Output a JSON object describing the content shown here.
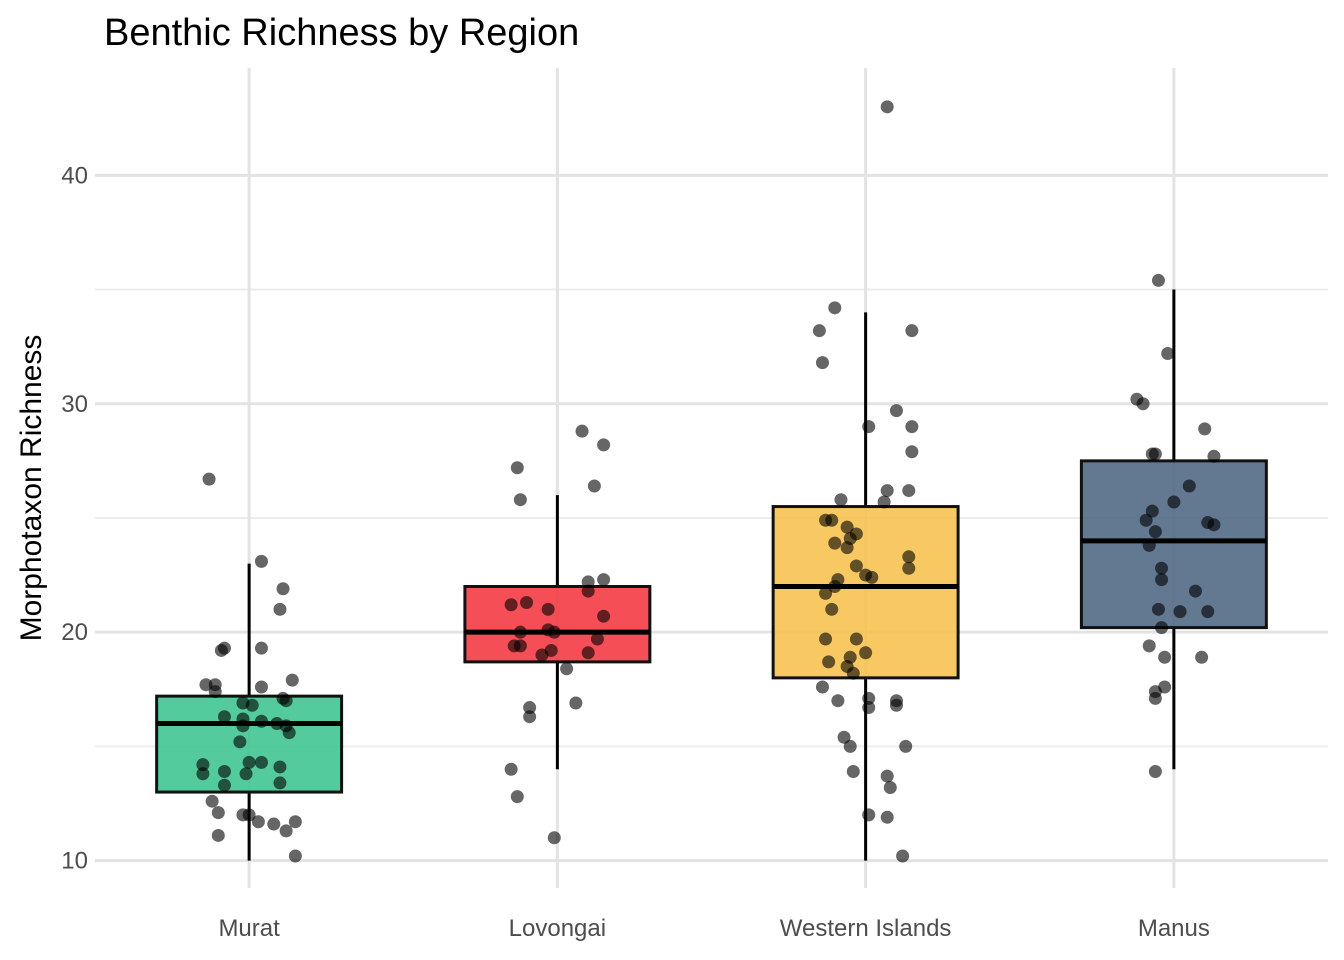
{
  "chart_data": {
    "type": "box",
    "title": "Benthic Richness by Region",
    "xlabel": "",
    "ylabel": "Morphotaxon Richness",
    "ylim": [
      8.8,
      44.7
    ],
    "yticks": [
      10,
      20,
      30,
      40
    ],
    "grid": true,
    "legend": "none",
    "categories": [
      "Murat",
      "Lovongai",
      "Western Islands",
      "Manus"
    ],
    "colors": [
      "#3CC48F",
      "#F5363F",
      "#F7C14C",
      "#4D6582"
    ],
    "boxes": [
      {
        "category": "Murat",
        "min": 10,
        "q1": 13.0,
        "median": 16.0,
        "q3": 17.2,
        "max": 23.0
      },
      {
        "category": "Lovongai",
        "min": 14,
        "q1": 18.7,
        "median": 20.0,
        "q3": 22.0,
        "max": 26.0
      },
      {
        "category": "Western Islands",
        "min": 10,
        "q1": 18.0,
        "median": 22.0,
        "q3": 25.5,
        "max": 34.0
      },
      {
        "category": "Manus",
        "min": 14,
        "q1": 20.2,
        "median": 24.0,
        "q3": 27.5,
        "max": 35.0
      }
    ],
    "points": [
      [
        [
          -0.13,
          26.7
        ],
        [
          -0.09,
          19.2
        ],
        [
          -0.08,
          19.3
        ],
        [
          0.04,
          19.3
        ],
        [
          0.04,
          17.6
        ],
        [
          -0.14,
          17.7
        ],
        [
          -0.11,
          17.7
        ],
        [
          -0.11,
          17.4
        ],
        [
          0.14,
          17.9
        ],
        [
          -0.02,
          16.9
        ],
        [
          0.01,
          16.8
        ],
        [
          0.11,
          17.1
        ],
        [
          0.12,
          17.0
        ],
        [
          -0.08,
          16.3
        ],
        [
          -0.02,
          16.2
        ],
        [
          -0.02,
          15.9
        ],
        [
          0.04,
          16.1
        ],
        [
          0.09,
          16.0
        ],
        [
          0.12,
          15.9
        ],
        [
          0.13,
          15.6
        ],
        [
          -0.03,
          15.2
        ],
        [
          0.0,
          14.3
        ],
        [
          0.04,
          14.3
        ],
        [
          0.1,
          14.1
        ],
        [
          -0.15,
          14.2
        ],
        [
          -0.15,
          13.8
        ],
        [
          -0.08,
          13.9
        ],
        [
          0.1,
          13.4
        ],
        [
          -0.08,
          13.3
        ],
        [
          -0.01,
          13.8
        ],
        [
          -0.12,
          12.6
        ],
        [
          -0.1,
          12.1
        ],
        [
          -0.02,
          12.0
        ],
        [
          0.0,
          12.0
        ],
        [
          0.03,
          11.7
        ],
        [
          0.08,
          11.6
        ],
        [
          0.12,
          11.3
        ],
        [
          0.15,
          11.7
        ],
        [
          -0.1,
          11.1
        ],
        [
          0.15,
          10.2
        ],
        [
          0.04,
          23.1
        ],
        [
          0.11,
          21.9
        ],
        [
          0.1,
          21.0
        ]
      ],
      [
        [
          -0.13,
          27.2
        ],
        [
          -0.12,
          25.8
        ],
        [
          0.08,
          28.8
        ],
        [
          0.15,
          28.2
        ],
        [
          0.12,
          26.4
        ],
        [
          0.1,
          22.2
        ],
        [
          0.15,
          22.3
        ],
        [
          0.1,
          21.8
        ],
        [
          -0.15,
          21.2
        ],
        [
          -0.1,
          21.3
        ],
        [
          -0.03,
          21.0
        ],
        [
          0.15,
          20.7
        ],
        [
          -0.12,
          20.0
        ],
        [
          -0.03,
          20.1
        ],
        [
          -0.01,
          20.0
        ],
        [
          -0.14,
          19.4
        ],
        [
          -0.12,
          19.4
        ],
        [
          -0.02,
          19.2
        ],
        [
          -0.05,
          19.0
        ],
        [
          0.13,
          19.7
        ],
        [
          0.1,
          19.1
        ],
        [
          0.03,
          18.4
        ],
        [
          -0.09,
          16.7
        ],
        [
          -0.09,
          16.3
        ],
        [
          0.06,
          16.9
        ],
        [
          -0.15,
          14.0
        ],
        [
          -0.13,
          12.8
        ],
        [
          -0.01,
          11.0
        ]
      ],
      [
        [
          0.07,
          43.0
        ],
        [
          -0.1,
          34.2
        ],
        [
          -0.15,
          33.2
        ],
        [
          -0.14,
          31.8
        ],
        [
          0.15,
          33.2
        ],
        [
          0.1,
          29.7
        ],
        [
          0.01,
          29.0
        ],
        [
          0.15,
          29.0
        ],
        [
          0.15,
          27.9
        ],
        [
          0.07,
          26.2
        ],
        [
          0.14,
          26.2
        ],
        [
          -0.08,
          25.8
        ],
        [
          0.06,
          25.7
        ],
        [
          -0.11,
          24.9
        ],
        [
          -0.13,
          24.9
        ],
        [
          -0.06,
          24.6
        ],
        [
          -0.03,
          24.3
        ],
        [
          -0.05,
          24.1
        ],
        [
          -0.1,
          23.9
        ],
        [
          -0.06,
          23.7
        ],
        [
          -0.03,
          22.9
        ],
        [
          0.0,
          22.5
        ],
        [
          0.02,
          22.4
        ],
        [
          -0.09,
          22.3
        ],
        [
          -0.1,
          22.0
        ],
        [
          -0.13,
          21.7
        ],
        [
          -0.11,
          21.0
        ],
        [
          -0.13,
          19.7
        ],
        [
          -0.03,
          19.7
        ],
        [
          0.0,
          19.1
        ],
        [
          -0.05,
          18.9
        ],
        [
          -0.12,
          18.7
        ],
        [
          -0.06,
          18.5
        ],
        [
          -0.04,
          18.2
        ],
        [
          0.14,
          23.3
        ],
        [
          0.14,
          22.8
        ],
        [
          0.1,
          17.0
        ],
        [
          -0.14,
          17.6
        ],
        [
          -0.09,
          17.0
        ],
        [
          0.01,
          17.1
        ],
        [
          0.01,
          16.7
        ],
        [
          0.1,
          16.8
        ],
        [
          -0.07,
          15.4
        ],
        [
          -0.05,
          15.0
        ],
        [
          0.13,
          15.0
        ],
        [
          -0.04,
          13.9
        ],
        [
          0.07,
          13.7
        ],
        [
          0.08,
          13.2
        ],
        [
          0.01,
          12.0
        ],
        [
          0.07,
          11.9
        ],
        [
          0.12,
          10.2
        ]
      ],
      [
        [
          -0.05,
          35.4
        ],
        [
          -0.02,
          32.2
        ],
        [
          -0.12,
          30.2
        ],
        [
          -0.1,
          30.0
        ],
        [
          0.1,
          28.9
        ],
        [
          -0.06,
          27.8
        ],
        [
          -0.07,
          27.8
        ],
        [
          0.13,
          27.7
        ],
        [
          0.05,
          26.4
        ],
        [
          0.0,
          25.7
        ],
        [
          -0.07,
          25.3
        ],
        [
          -0.09,
          24.9
        ],
        [
          -0.06,
          24.4
        ],
        [
          0.11,
          24.8
        ],
        [
          0.13,
          24.7
        ],
        [
          -0.08,
          23.8
        ],
        [
          -0.04,
          22.8
        ],
        [
          -0.04,
          22.3
        ],
        [
          0.07,
          21.8
        ],
        [
          -0.05,
          21.0
        ],
        [
          0.02,
          20.9
        ],
        [
          0.11,
          20.9
        ],
        [
          -0.08,
          19.4
        ],
        [
          -0.03,
          18.9
        ],
        [
          -0.04,
          20.2
        ],
        [
          0.09,
          18.9
        ],
        [
          -0.03,
          17.6
        ],
        [
          -0.06,
          17.4
        ],
        [
          -0.06,
          17.1
        ],
        [
          -0.06,
          13.9
        ]
      ]
    ]
  }
}
